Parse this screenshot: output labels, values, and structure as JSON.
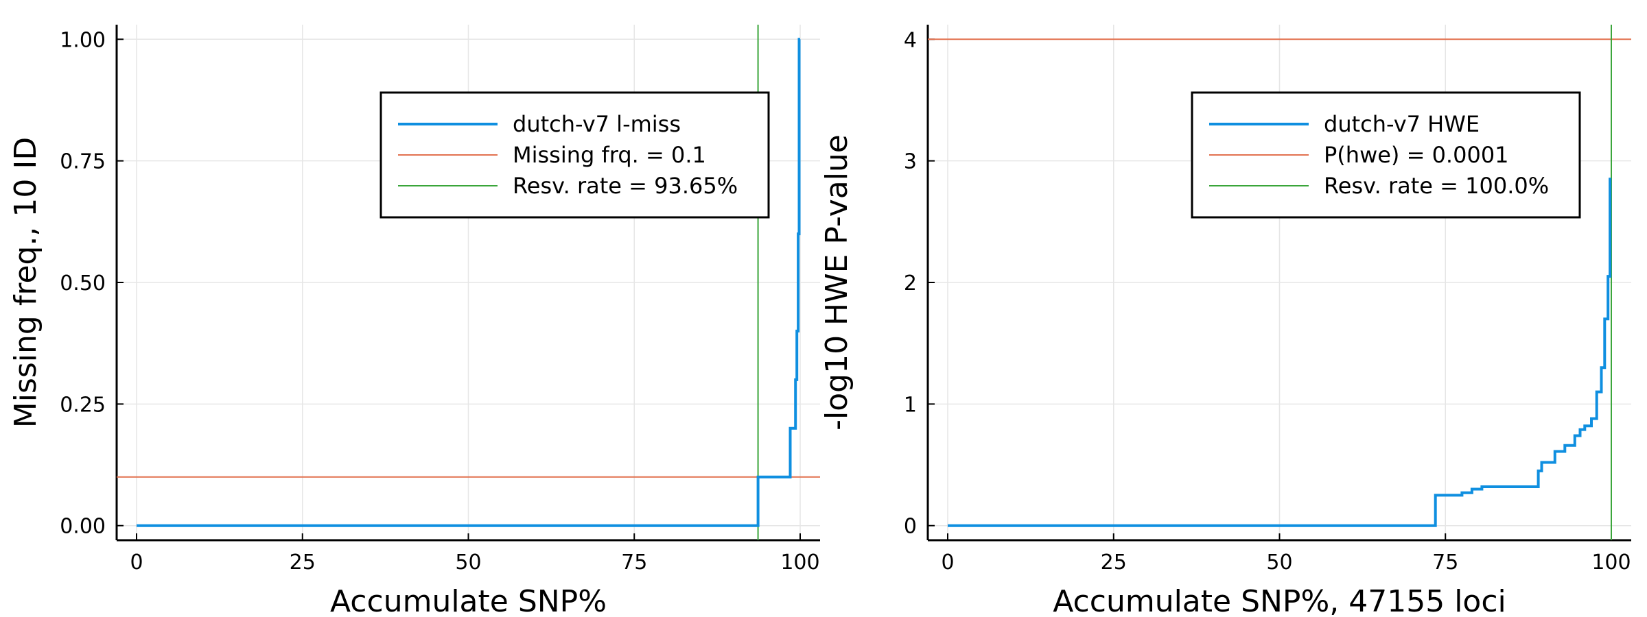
{
  "colors": {
    "series": "#0f8fe0",
    "threshold": "#e2714f",
    "resv": "#3aa53a",
    "grid": "#e6e6e6",
    "axis": "#000000"
  },
  "chart_data": [
    {
      "type": "line",
      "xlabel": "Accumulate SNP%",
      "ylabel": "Missing freq., 10 ID",
      "xlim": [
        -3,
        103
      ],
      "ylim": [
        -0.03,
        1.03
      ],
      "xticks": [
        0,
        25,
        50,
        75,
        100
      ],
      "xtick_labels": [
        "0",
        "25",
        "50",
        "75",
        "100"
      ],
      "yticks": [
        0,
        0.25,
        0.5,
        0.75,
        1.0
      ],
      "ytick_labels": [
        "0.00",
        "0.25",
        "0.50",
        "0.75",
        "1.00"
      ],
      "grid": true,
      "legend_position": "top-right",
      "series": [
        {
          "name": "dutch-v7 l-miss",
          "step": true,
          "x": [
            0,
            93.65,
            93.65,
            98.5,
            98.5,
            99.3,
            99.3,
            99.5,
            99.5,
            99.7,
            99.7,
            99.85,
            99.85,
            100
          ],
          "y": [
            0,
            0,
            0.1,
            0.1,
            0.2,
            0.2,
            0.3,
            0.3,
            0.4,
            0.4,
            0.6,
            0.6,
            1.0,
            1.0
          ]
        }
      ],
      "hlines": [
        {
          "name": "Missing frq. = 0.1",
          "y": 0.1
        }
      ],
      "vlines": [
        {
          "name": "Resv. rate = 93.65%",
          "x": 93.65
        }
      ]
    },
    {
      "type": "line",
      "xlabel": "Accumulate SNP%, 47155 loci",
      "ylabel": "-log10 HWE P-value",
      "xlim": [
        -3,
        103
      ],
      "ylim": [
        -0.12,
        4.12
      ],
      "xticks": [
        0,
        25,
        50,
        75,
        100
      ],
      "xtick_labels": [
        "0",
        "25",
        "50",
        "75",
        "100"
      ],
      "yticks": [
        0,
        1,
        2,
        3,
        4
      ],
      "ytick_labels": [
        "0",
        "1",
        "2",
        "3",
        "4"
      ],
      "grid": true,
      "legend_position": "top-right",
      "series": [
        {
          "name": "dutch-v7 HWE",
          "step": true,
          "x": [
            0,
            73.5,
            73.5,
            77.5,
            77.5,
            79.0,
            79.0,
            80.5,
            80.5,
            89.0,
            89.0,
            89.5,
            89.5,
            91.5,
            91.5,
            93.0,
            93.0,
            94.5,
            94.5,
            95.3,
            95.3,
            96.0,
            96.0,
            97.0,
            97.0,
            97.8,
            97.8,
            98.5,
            98.5,
            99.0,
            99.0,
            99.5,
            99.5,
            99.8,
            99.8,
            100
          ],
          "y": [
            0,
            0,
            0.25,
            0.25,
            0.27,
            0.27,
            0.3,
            0.3,
            0.32,
            0.32,
            0.45,
            0.45,
            0.52,
            0.52,
            0.61,
            0.61,
            0.66,
            0.66,
            0.74,
            0.74,
            0.79,
            0.79,
            0.82,
            0.82,
            0.88,
            0.88,
            1.1,
            1.1,
            1.3,
            1.3,
            1.7,
            1.7,
            2.05,
            2.05,
            2.85,
            2.85
          ]
        }
      ],
      "hlines": [
        {
          "name": "P(hwe) = 0.0001",
          "y": 4
        }
      ],
      "vlines": [
        {
          "name": "Resv. rate = 100.0%",
          "x": 100
        }
      ]
    }
  ]
}
